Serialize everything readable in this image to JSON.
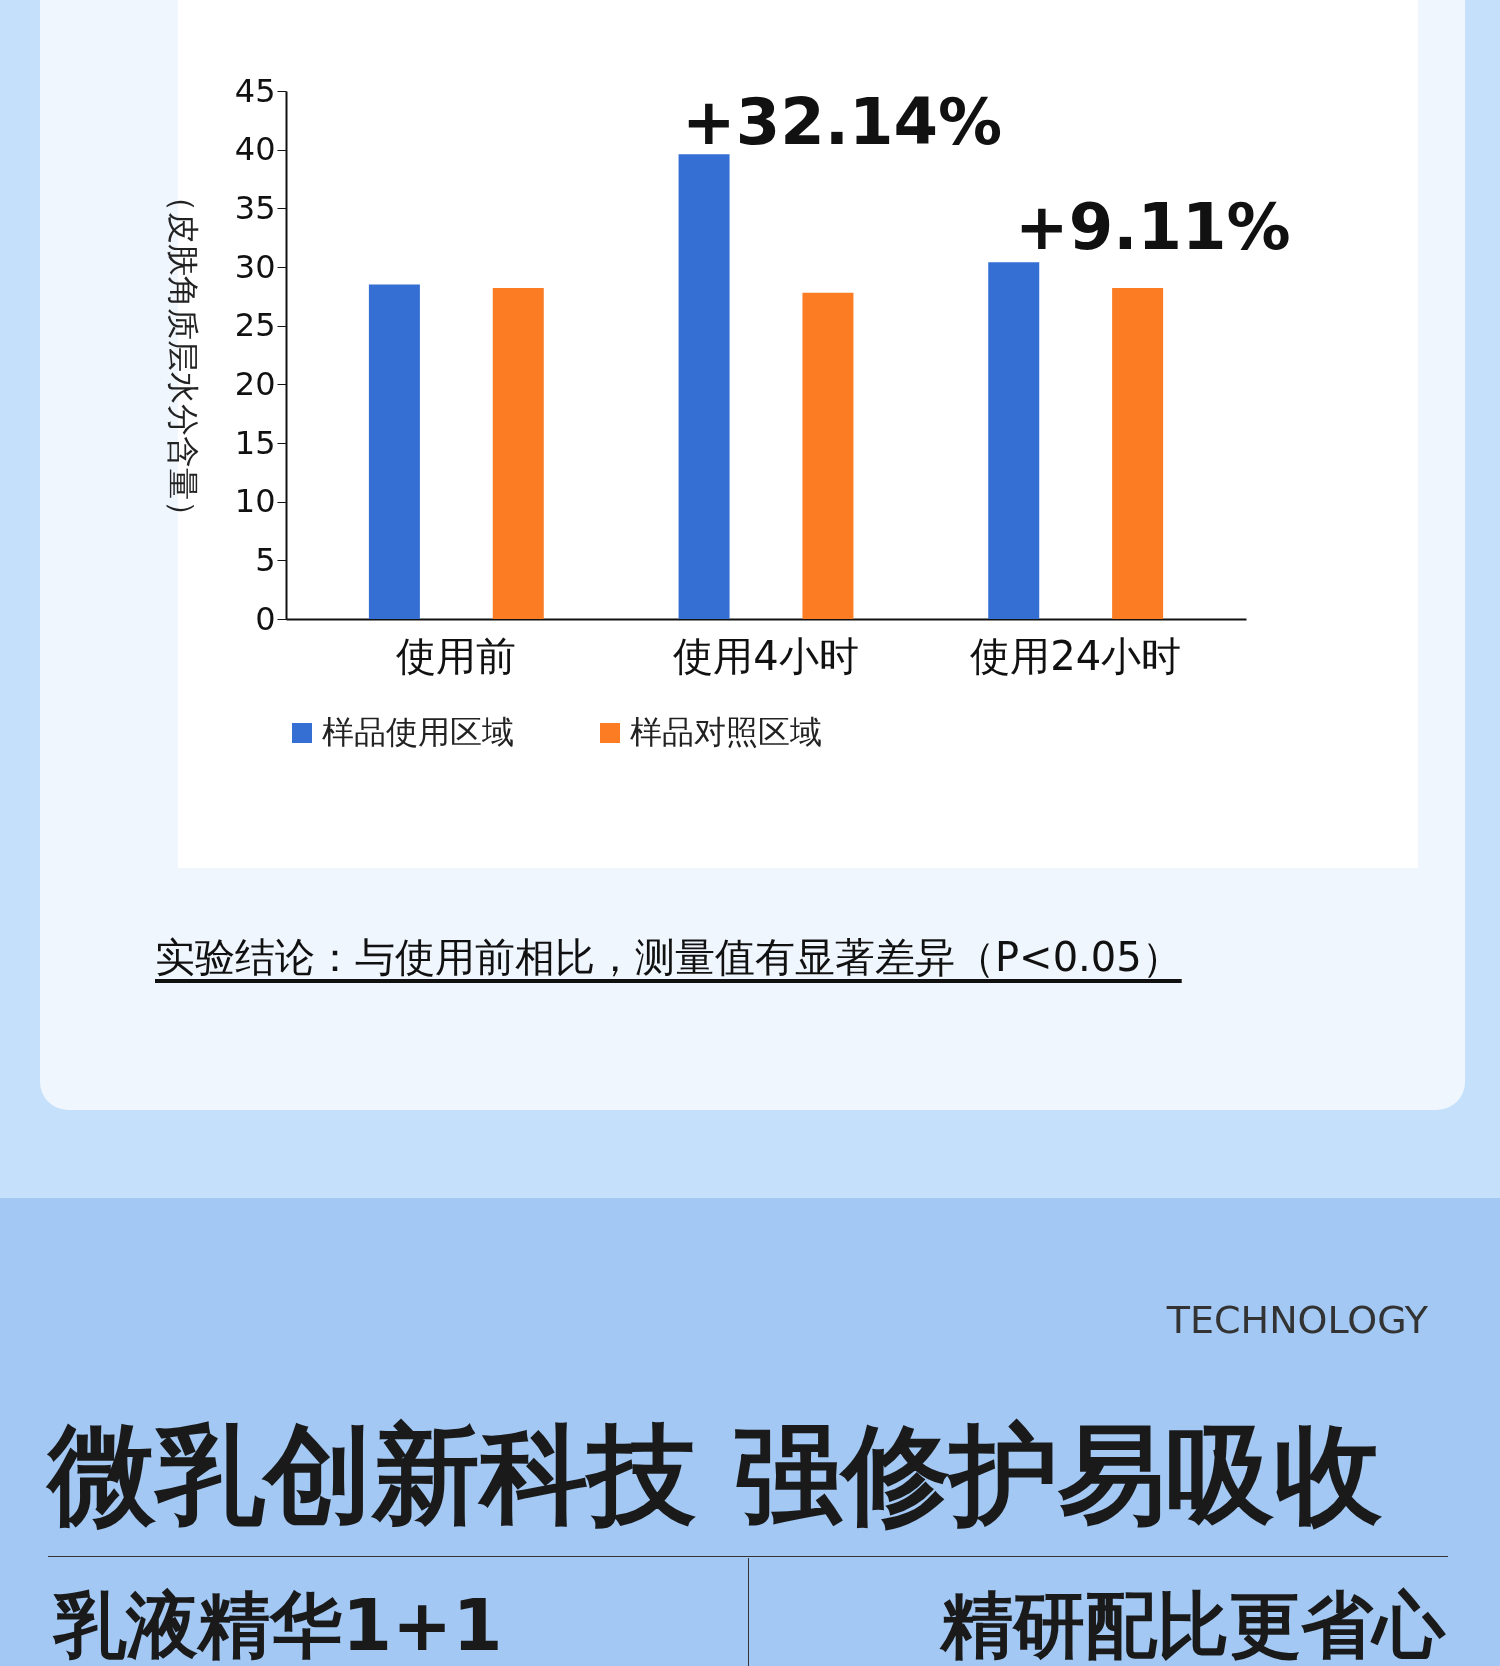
{
  "chart_data": {
    "type": "bar",
    "ylabel": "（皮肤角质层水分含量）",
    "categories": [
      "使用前",
      "使用4小时",
      "使用24小时"
    ],
    "series": [
      {
        "name": "样品使用区域",
        "color": "#356fd3",
        "values": [
          28.5,
          39.6,
          30.4
        ]
      },
      {
        "name": "样品对照区域",
        "color": "#fb7c22",
        "values": [
          28.2,
          27.8,
          28.2
        ]
      }
    ],
    "ylim": [
      0,
      45
    ],
    "yticks": [
      0,
      5,
      10,
      15,
      20,
      25,
      30,
      35,
      40,
      45
    ],
    "grid": false,
    "legend": "bottom",
    "annotations": [
      "+32.14%",
      "+9.11%",
      "实验结论：与使用前相比，测量值有显著差异（P<0.05）",
      "TECHNOLOGY",
      "微乳创新科技  强修护易吸收",
      "乳液精华1+1",
      "精研配比更省心"
    ]
  }
}
